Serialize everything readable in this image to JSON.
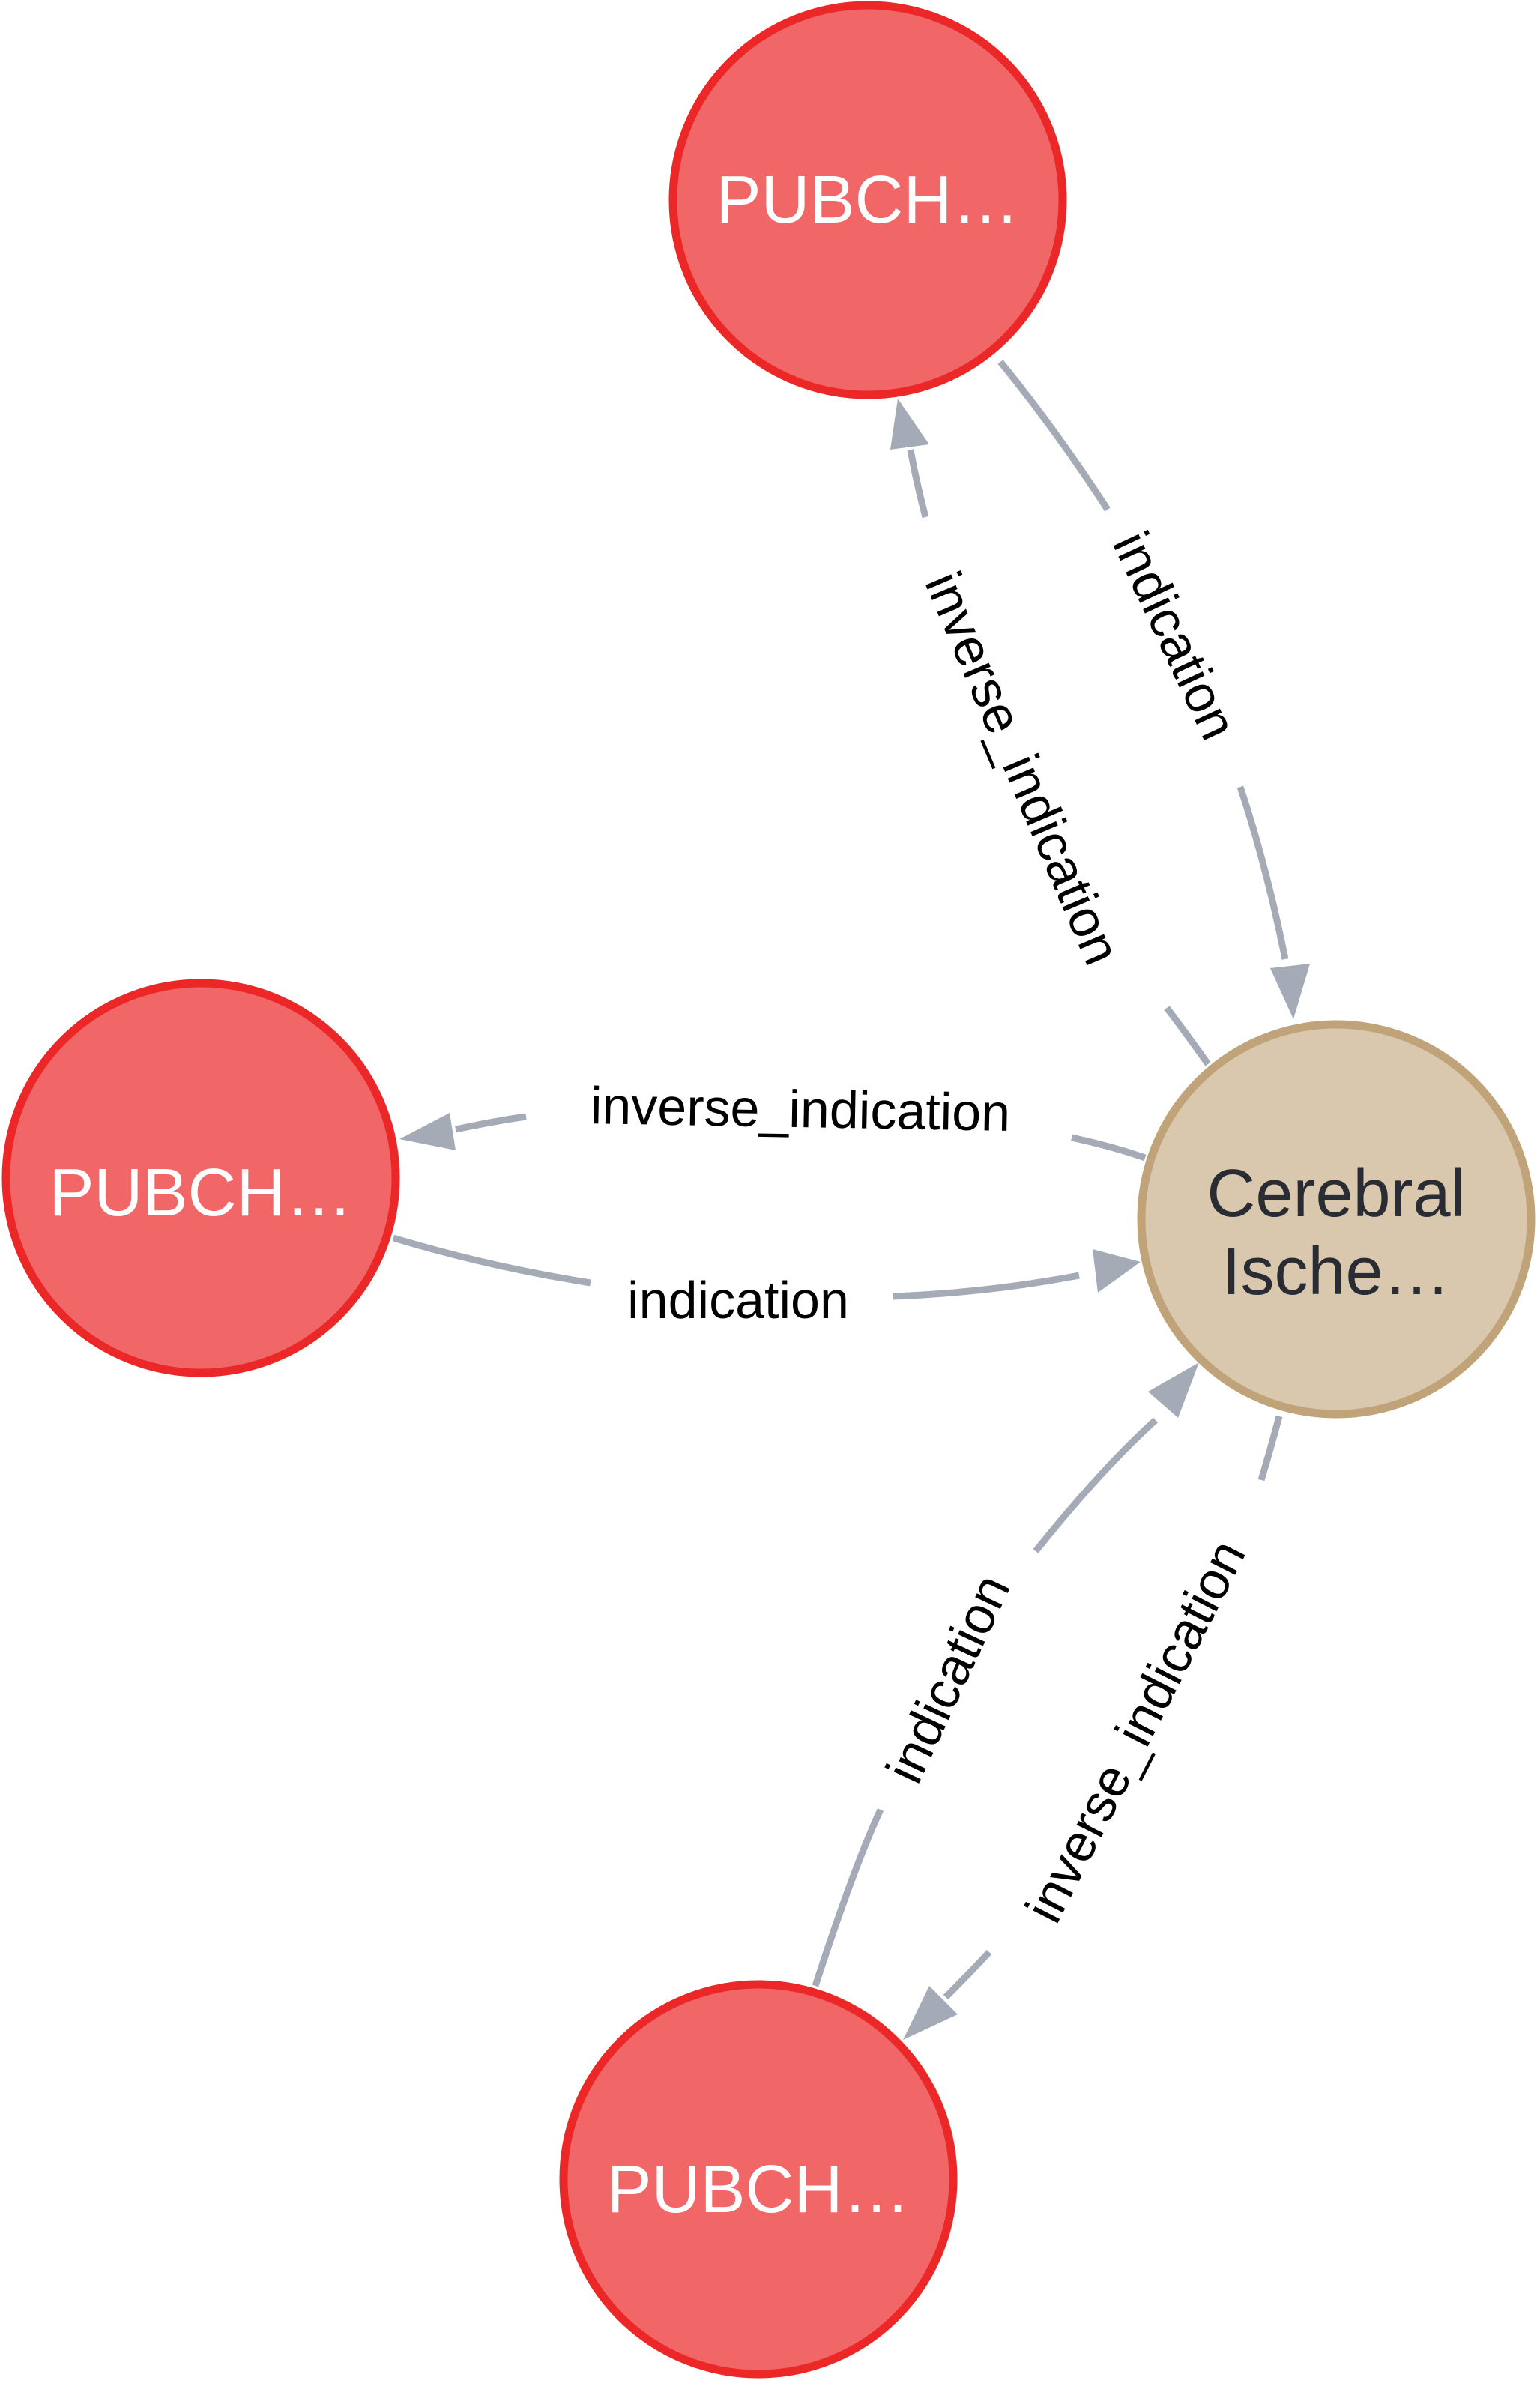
{
  "colors": {
    "compound_fill": "#f16667",
    "compound_stroke": "#eb2728",
    "disease_fill": "#d9c8ae",
    "disease_stroke": "#c0a378",
    "edge": "#a5abb6"
  },
  "nodes": {
    "compound_top": {
      "label": "PUBCH…",
      "type": "compound"
    },
    "compound_left": {
      "label": "PUBCH…",
      "type": "compound"
    },
    "compound_bottom": {
      "label": "PUBCH…",
      "type": "compound"
    },
    "disease": {
      "label_line1": "Cerebral",
      "label_line2": "Ische…",
      "type": "disease"
    }
  },
  "edges": {
    "top_indication": {
      "label": "indication",
      "from": "compound_top",
      "to": "disease"
    },
    "top_inverse": {
      "label": "inverse_indication",
      "from": "disease",
      "to": "compound_top"
    },
    "left_inverse": {
      "label": "inverse_indication",
      "from": "disease",
      "to": "compound_left"
    },
    "left_indication": {
      "label": "indication",
      "from": "compound_left",
      "to": "disease"
    },
    "bottom_indication": {
      "label": "indication",
      "from": "compound_bottom",
      "to": "disease"
    },
    "bottom_inverse": {
      "label": "inverse_indication",
      "from": "disease",
      "to": "compound_bottom"
    }
  }
}
